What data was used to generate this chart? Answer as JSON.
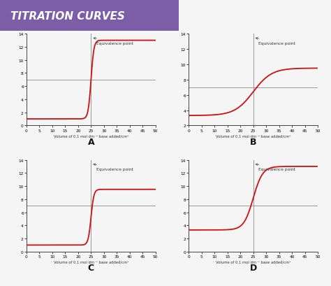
{
  "title": "TITRATION CURVES",
  "title_bg": "#7b5ea7",
  "title_color": "#ffffff",
  "background_color": "#f5f5f5",
  "xlabel": "Volume of 0.1 mol dm⁻³ base added/cm³",
  "curve_color": "#cc1111",
  "hline_color": "#999999",
  "vline_color": "#999999",
  "annotation_text": "Equivalence point",
  "subplots": [
    {
      "label": "A",
      "ylim": [
        0,
        14
      ],
      "xlim": [
        0,
        50
      ],
      "yticks": [
        0,
        2,
        4,
        6,
        8,
        10,
        12,
        14
      ],
      "xticks": [
        0,
        5,
        10,
        15,
        20,
        25,
        30,
        35,
        40,
        45,
        50
      ],
      "hline_y": 7,
      "eq_x": 25,
      "curve_type": "strong_strong",
      "start_ph": 1.0,
      "end_ph": 13.0,
      "steepness": 1.8,
      "mid_x": 25
    },
    {
      "label": "B",
      "ylim": [
        2,
        14
      ],
      "xlim": [
        0,
        50
      ],
      "yticks": [
        2,
        4,
        6,
        8,
        10,
        12,
        14
      ],
      "xticks": [
        0,
        5,
        10,
        15,
        20,
        25,
        30,
        35,
        40,
        45,
        50
      ],
      "hline_y": 7,
      "eq_x": 25,
      "curve_type": "weak_strong",
      "start_ph": 3.3,
      "end_ph": 9.5,
      "steepness": 0.28,
      "mid_x": 25
    },
    {
      "label": "C",
      "ylim": [
        0,
        14
      ],
      "xlim": [
        0,
        50
      ],
      "yticks": [
        0,
        2,
        4,
        6,
        8,
        10,
        12,
        14
      ],
      "xticks": [
        0,
        5,
        10,
        15,
        20,
        25,
        30,
        35,
        40,
        45,
        50
      ],
      "hline_y": 7,
      "eq_x": 25,
      "curve_type": "strong_weak",
      "start_ph": 1.0,
      "end_ph": 9.5,
      "steepness": 1.8,
      "mid_x": 25
    },
    {
      "label": "D",
      "ylim": [
        0,
        14
      ],
      "xlim": [
        0,
        50
      ],
      "yticks": [
        0,
        2,
        4,
        6,
        8,
        10,
        12,
        14
      ],
      "xticks": [
        0,
        5,
        10,
        15,
        20,
        25,
        30,
        35,
        40,
        45,
        50
      ],
      "hline_y": 7,
      "eq_x": 25,
      "curve_type": "weak_weak",
      "start_ph": 3.3,
      "end_ph": 13.0,
      "steepness": 0.55,
      "mid_x": 25
    }
  ]
}
